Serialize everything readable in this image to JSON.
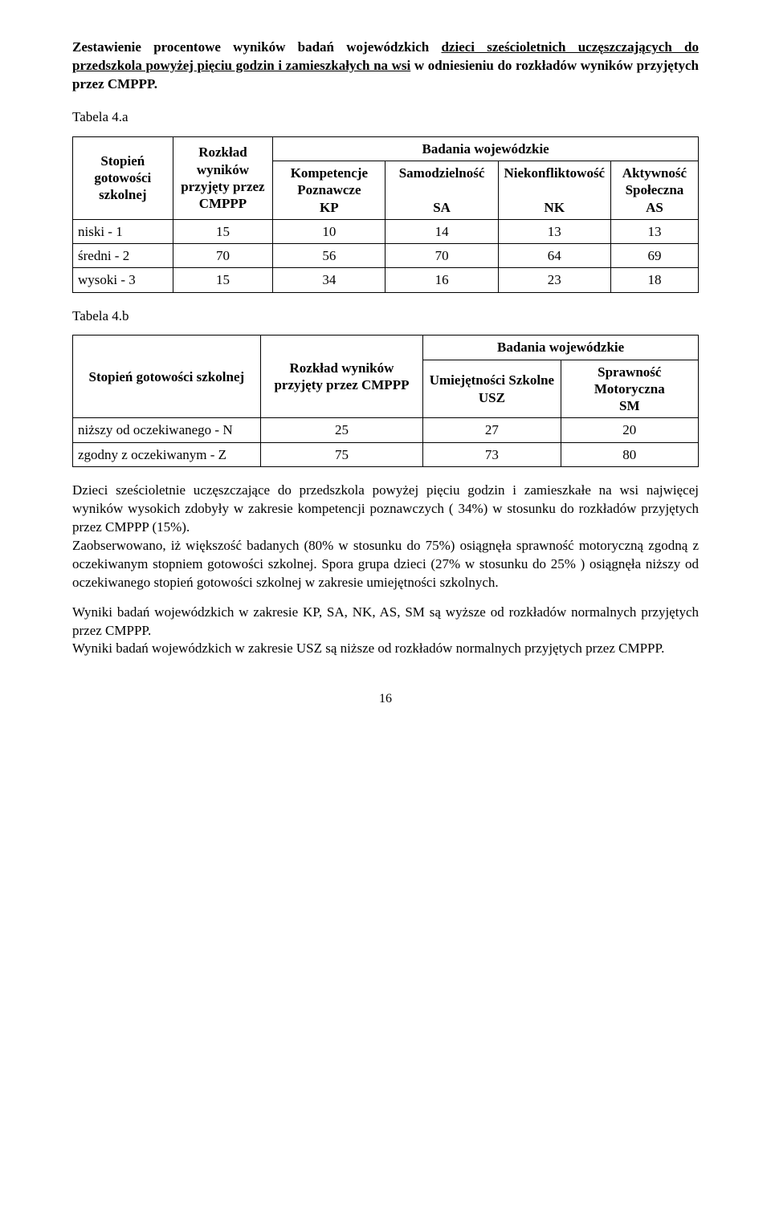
{
  "heading": {
    "pre": "Zestawienie procentowe wyników badań wojewódzkich ",
    "underlined": "dzieci sześcioletnich uczęszczających do przedszkola powyżej pięciu godzin i zamieszkałych na wsi",
    "post": " w odniesieniu do rozkładów wyników przyjętych przez CMPPP."
  },
  "tableA": {
    "label": "Tabela 4.a",
    "colHeaders": {
      "stopien": "Stopień gotowości szkolnej",
      "rozklad": "Rozkład wyników przyjęty przez CMPPP",
      "badania": "Badania wojewódzkie",
      "kp": "Kompetencje Poznawcze",
      "kp_abbr": "KP",
      "sa": "Samodzielność",
      "sa_abbr": "SA",
      "nk": "Niekonfliktowość",
      "nk_abbr": "NK",
      "as": "Aktywność Społeczna",
      "as_abbr": "AS"
    },
    "rows": [
      {
        "label": "niski - 1",
        "rozklad": "15",
        "kp": "10",
        "sa": "14",
        "nk": "13",
        "as": "13"
      },
      {
        "label": "średni - 2",
        "rozklad": "70",
        "kp": "56",
        "sa": "70",
        "nk": "64",
        "as": "69"
      },
      {
        "label": "wysoki - 3",
        "rozklad": "15",
        "kp": "34",
        "sa": "16",
        "nk": "23",
        "as": "18"
      }
    ]
  },
  "tableB": {
    "label": "Tabela 4.b",
    "colHeaders": {
      "stopien": "Stopień gotowości szkolnej",
      "rozklad": "Rozkład wyników przyjęty przez CMPPP",
      "badania": "Badania wojewódzkie",
      "usz": "Umiejętności Szkolne",
      "usz_abbr": "USZ",
      "sm": "Sprawność Motoryczna",
      "sm_abbr": "SM"
    },
    "rows": [
      {
        "label": "niższy od oczekiwanego  - N",
        "rozklad": "25",
        "usz": "27",
        "sm": "20"
      },
      {
        "label": "zgodny z oczekiwanym - Z",
        "rozklad": "75",
        "usz": "73",
        "sm": "80"
      }
    ]
  },
  "paragraphs": {
    "p1": "Dzieci sześcioletnie uczęszczające do przedszkola powyżej pięciu godzin i zamieszkałe na wsi  najwięcej wyników wysokich zdobyły w zakresie kompetencji poznawczych ( 34%) w stosunku do rozkładów przyjętych przez CMPPP (15%).",
    "p2": "Zaobserwowano, iż większość badanych  (80% w stosunku do 75%) osiągnęła sprawność motoryczną zgodną  z oczekiwanym stopniem gotowości szkolnej. Spora grupa dzieci (27% w stosunku do 25% ) osiągnęła  niższy od oczekiwanego stopień gotowości szkolnej w zakresie umiejętności szkolnych.",
    "p3": "Wyniki badań wojewódzkich w zakresie  KP, SA, NK, AS, SM są wyższe od rozkładów normalnych przyjętych przez CMPPP.",
    "p4": "Wyniki badań wojewódzkich w zakresie  USZ  są niższe od rozkładów normalnych przyjętych przez CMPPP."
  },
  "pageNumber": "16"
}
